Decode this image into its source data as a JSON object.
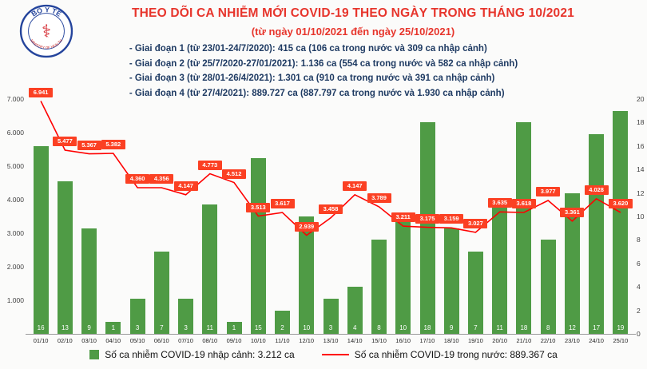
{
  "header": {
    "logo_top": "BỘ Y TẾ",
    "logo_bottom": "MINISTRY OF HEALTH",
    "logo_symbol": "⚕"
  },
  "colors": {
    "background": "#fbfbfa",
    "title": "#e7352c",
    "notes": "#1f3b63",
    "bar": "#4f9b45",
    "line": "#ff0000",
    "line_label_bg": "#fb4023",
    "axis_text": "#404040",
    "legend_text": "#111111"
  },
  "chart_data": {
    "type": "bar+line",
    "title": "THEO DÕI CA NHIỄM MỚI COVID-19 THEO NGÀY TRONG THÁNG 10/2021",
    "subtitle": "(từ ngày 01/10/2021 đến ngày 25/10/2021)",
    "annotations": [
      "- Giai đoạn 1 (từ 23/01-24/7/2020): 415 ca (106 ca trong nước và 309 ca nhập cảnh)",
      "- Giai đoạn 2 (từ 25/7/2020-27/01/2021): 1.136 ca (554 ca trong nước và 582 ca nhập cảnh)",
      "- Giai đoạn 3 (từ 28/01-26/4/2021): 1.301 ca (910 ca trong nước và 391 ca nhập cảnh)",
      "- Giai đoạn 4 (từ 27/4/2021): 889.727 ca (887.797 ca trong nước và 1.930 ca nhập cảnh)"
    ],
    "categories": [
      "01/10",
      "02/10",
      "03/10",
      "04/10",
      "05/10",
      "06/10",
      "07/10",
      "08/10",
      "09/10",
      "10/10",
      "11/10",
      "12/10",
      "13/10",
      "14/10",
      "15/10",
      "16/10",
      "17/10",
      "18/10",
      "19/10",
      "20/10",
      "21/10",
      "22/10",
      "23/10",
      "24/10",
      "25/10"
    ],
    "series": [
      {
        "name": "Số ca nhiễm COVID-19 nhập cảnh",
        "type": "bar",
        "axis": "right",
        "values": [
          16,
          13,
          9,
          1,
          3,
          7,
          3,
          11,
          1,
          15,
          2,
          10,
          3,
          4,
          8,
          10,
          18,
          9,
          7,
          11,
          18,
          8,
          12,
          17,
          19
        ],
        "legend_label": "Số ca nhiễm COVID-19 nhập cảnh: 3.212 ca"
      },
      {
        "name": "Số ca nhiễm COVID-19 trong nước",
        "type": "line",
        "axis": "left",
        "values": [
          6941,
          5477,
          5367,
          5382,
          4360,
          4356,
          4147,
          4773,
          4512,
          3513,
          3617,
          2939,
          3458,
          4147,
          3789,
          3211,
          3175,
          3159,
          3027,
          3635,
          3618,
          3977,
          3361,
          4028,
          3620
        ],
        "labels": [
          "6.941",
          "5.477",
          "5.367",
          "5.382",
          "4.360",
          "4.356",
          "4.147",
          "4.773",
          "4.512",
          "3.513",
          "3.617",
          "2.939",
          "3.458",
          "4.147",
          "3.789",
          "3.211",
          "3.175",
          "3.159",
          "3.027",
          "3.635",
          "3.618",
          "3.977",
          "3.361",
          "4.028",
          "3.620"
        ],
        "legend_label": "Số ca nhiễm COVID-19 trong nước: 889.367 ca"
      }
    ],
    "left_axis": {
      "max": 7000,
      "ticks": [
        {
          "v": 7000,
          "label": "7.000"
        },
        {
          "v": 6000,
          "label": "6.000"
        },
        {
          "v": 5000,
          "label": "5.000"
        },
        {
          "v": 4000,
          "label": "4.000"
        },
        {
          "v": 3000,
          "label": "3.000"
        },
        {
          "v": 2000,
          "label": "2.000"
        },
        {
          "v": 1000,
          "label": "1.000"
        }
      ]
    },
    "right_axis": {
      "max": 20,
      "ticks": [
        {
          "v": 20,
          "label": "20"
        },
        {
          "v": 18,
          "label": "18"
        },
        {
          "v": 16,
          "label": "16"
        },
        {
          "v": 14,
          "label": "14"
        },
        {
          "v": 12,
          "label": "12"
        },
        {
          "v": 10,
          "label": "10"
        },
        {
          "v": 8,
          "label": "8"
        },
        {
          "v": 6,
          "label": "6"
        },
        {
          "v": 4,
          "label": "4"
        },
        {
          "v": 2,
          "label": "2"
        },
        {
          "v": 0,
          "label": "0"
        }
      ]
    },
    "legend_position": "bottom",
    "grid": false
  }
}
